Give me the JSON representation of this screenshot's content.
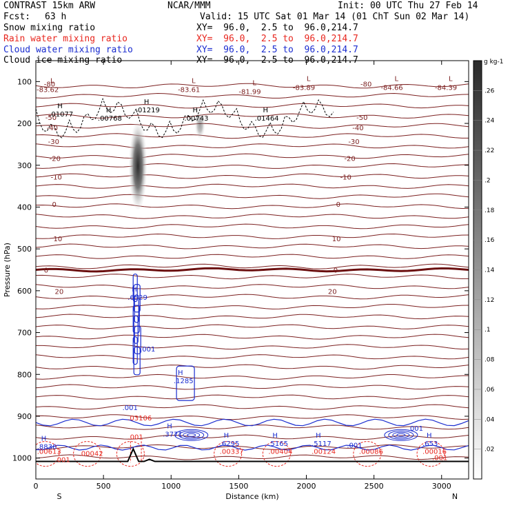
{
  "header": {
    "title": "CONTRAST 15km ARW",
    "center": "NCAR/MMM",
    "init": "Init: 00 UTC Thu 27 Feb 14",
    "fcst_label": "Fcst:",
    "fcst_value": "63 h",
    "valid": "Valid: 15 UTC Sat 01 Mar 14 (01 ChT Sun 02 Mar 14)"
  },
  "fields": [
    {
      "name": "Snow mixing ratio",
      "xy": "XY=  96.0,  2.5 to  96.0,214.7",
      "color": "#000000"
    },
    {
      "name": "Rain water mixing ratio",
      "xy": "XY=  96.0,  2.5 to  96.0,214.7",
      "color": "#e8261e"
    },
    {
      "name": "Cloud water mixing ratio",
      "xy": "XY=  96.0,  2.5 to  96.0,214.7",
      "color": "#1a2ccf"
    },
    {
      "name": "Cloud ice mixing ratio",
      "xy": "XY=  96.0,  2.5 to  96.0,214.7",
      "color": "#000000"
    }
  ],
  "chart_data": {
    "type": "heatmap",
    "xlabel": "Distance (km)",
    "ylabel": "Pressure (hPa)",
    "xlim": [
      0,
      3200
    ],
    "ylim": [
      1050,
      50
    ],
    "x_ticks": [
      0,
      500,
      1000,
      1500,
      2000,
      2500,
      3000
    ],
    "y_ticks": [
      100,
      200,
      300,
      400,
      500,
      600,
      700,
      800,
      900,
      1000
    ],
    "x_end_labels": [
      "S",
      "N"
    ],
    "colorbar": {
      "unit": "g kg-1",
      "ticks": [
        ".02",
        ".04",
        ".06",
        ".08",
        ".1",
        ".12",
        ".14",
        ".16",
        ".18",
        ".2",
        ".22",
        ".24",
        ".26"
      ]
    },
    "temperature_contours": [
      {
        "label": "-80",
        "p": 105
      },
      {
        "label": "-50",
        "p": 185
      },
      {
        "label": "-40",
        "p": 210
      },
      {
        "label": "-30",
        "p": 243
      },
      {
        "label": "-20",
        "p": 283
      },
      {
        "label": "-10",
        "p": 328
      },
      {
        "label": "0",
        "p": 393
      },
      {
        "label": "10",
        "p": 475
      },
      {
        "label": "20",
        "p": 601
      }
    ],
    "zero_isotherm_p": 550,
    "temperature_points": [
      {
        "x": 5,
        "p": 120,
        "label": "-83.62"
      },
      {
        "x": 1050,
        "p": 120,
        "label": "-83.61"
      },
      {
        "x": 1500,
        "p": 125,
        "label": "-81.99"
      },
      {
        "x": 1900,
        "p": 115,
        "label": "-83.89"
      },
      {
        "x": 2550,
        "p": 115,
        "label": "-84.66"
      },
      {
        "x": 2950,
        "p": 115,
        "label": "-84.39"
      }
    ],
    "snow_maxima": [
      {
        "x": 200,
        "p": 180,
        "label": ".01077"
      },
      {
        "x": 560,
        "p": 190,
        "label": ".00768"
      },
      {
        "x": 840,
        "p": 170,
        "label": ".01219"
      },
      {
        "x": 1200,
        "p": 190,
        "label": ".00743"
      },
      {
        "x": 1720,
        "p": 190,
        "label": ".01464"
      }
    ],
    "cloud_water_maxima": [
      {
        "x": 740,
        "p": 618,
        "label": ".6529"
      },
      {
        "x": 1080,
        "p": 818,
        "label": ".1285"
      },
      {
        "x": 1000,
        "p": 945,
        "label": ".3771"
      },
      {
        "x": 70,
        "p": 975,
        "label": ".8836"
      },
      {
        "x": 1420,
        "p": 968,
        "label": ".6295"
      },
      {
        "x": 1780,
        "p": 968,
        "label": ".5165"
      },
      {
        "x": 2100,
        "p": 968,
        "label": ".5117"
      },
      {
        "x": 2920,
        "p": 968,
        "label": ".653"
      }
    ],
    "cloud_water_min_labels": [
      {
        "x": 640,
        "p": 885,
        "label": ".001"
      },
      {
        "x": 770,
        "p": 745,
        "label": ".001"
      },
      {
        "x": 2300,
        "p": 975,
        "label": ".001"
      },
      {
        "x": 2750,
        "p": 935,
        "label": ".001"
      }
    ],
    "rain_maxima": [
      {
        "x": 70,
        "p": 980,
        "label": ".00613"
      },
      {
        "x": 380,
        "p": 985,
        "label": ".00042"
      },
      {
        "x": 1420,
        "p": 980,
        "label": ".00337"
      },
      {
        "x": 1780,
        "p": 980,
        "label": ".00404"
      },
      {
        "x": 2100,
        "p": 980,
        "label": ".00124"
      },
      {
        "x": 2450,
        "p": 980,
        "label": ".00086"
      },
      {
        "x": 2920,
        "p": 980,
        "label": ".00016"
      },
      {
        "x": 740,
        "p": 900,
        "label": ".03106"
      }
    ],
    "rain_min_labels": [
      {
        "x": 140,
        "p": 1010,
        "label": ".001"
      },
      {
        "x": 680,
        "p": 955,
        "label": ".001"
      },
      {
        "x": 2930,
        "p": 1005,
        "label": ".001"
      }
    ],
    "ice_maximum": {
      "x": 755,
      "p": 340,
      "label": ".26"
    }
  }
}
